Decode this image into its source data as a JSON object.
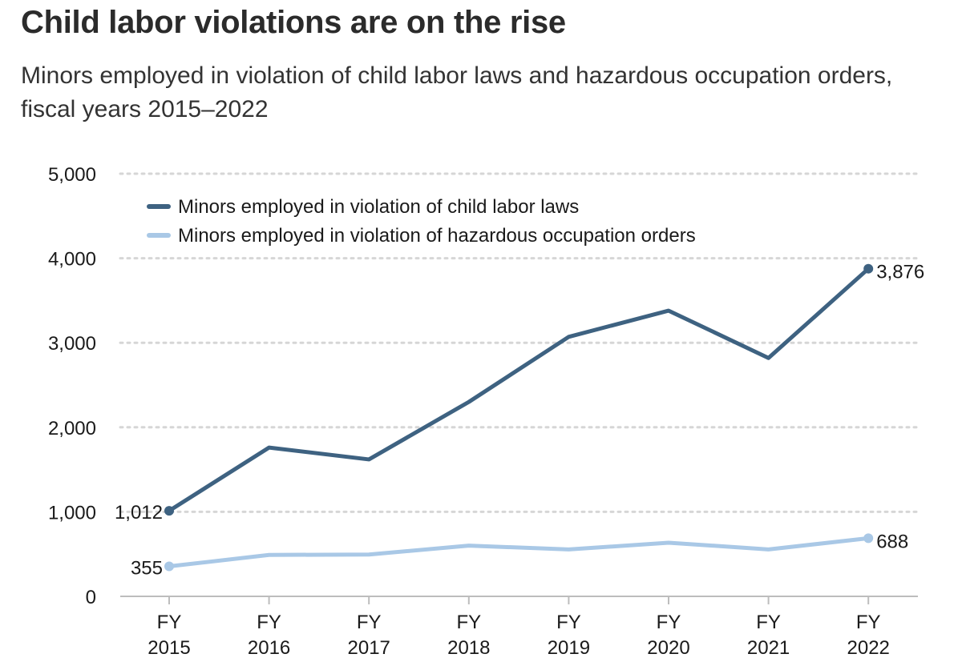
{
  "title": "Child labor violations are on the rise",
  "subtitle": "Minors employed in violation of child labor laws and hazardous occupation orders, fiscal years 2015–2022",
  "colors": {
    "child_labor": "#3e6281",
    "hazardous": "#a9c8e6",
    "grid": "#d6d6d6",
    "axis": "#bdbdbd"
  },
  "chart_data": {
    "type": "line",
    "x": [
      "FY 2015",
      "FY 2016",
      "FY 2017",
      "FY 2018",
      "FY 2019",
      "FY 2020",
      "FY 2021",
      "FY 2022"
    ],
    "x_tick_lines": [
      [
        "FY",
        "2015"
      ],
      [
        "FY",
        "2016"
      ],
      [
        "FY",
        "2017"
      ],
      [
        "FY",
        "2018"
      ],
      [
        "FY",
        "2019"
      ],
      [
        "FY",
        "2020"
      ],
      [
        "FY",
        "2021"
      ],
      [
        "FY",
        "2022"
      ]
    ],
    "ylim": [
      0,
      5000
    ],
    "yticks": [
      0,
      1000,
      2000,
      3000,
      4000,
      5000
    ],
    "ytick_labels": [
      "0",
      "1,000",
      "2,000",
      "3,000",
      "4,000",
      "5,000"
    ],
    "grid": true,
    "legend_position": "top-left",
    "series": [
      {
        "name": "Minors employed in violation of child labor laws",
        "values": [
          1012,
          1760,
          1620,
          2300,
          3070,
          3380,
          2820,
          3876
        ],
        "color": "#3e6281",
        "endpoint_labels": [
          "1,012",
          "3,876"
        ]
      },
      {
        "name": "Minors employed in violation of hazardous occupation orders",
        "values": [
          355,
          490,
          495,
          600,
          555,
          635,
          555,
          688
        ],
        "color": "#a9c8e6",
        "endpoint_labels": [
          "355",
          "688"
        ]
      }
    ]
  }
}
